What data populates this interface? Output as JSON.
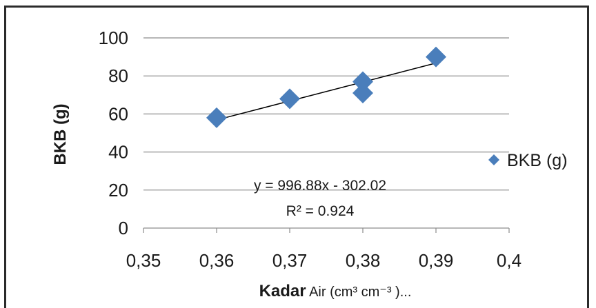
{
  "chart_data": {
    "type": "scatter",
    "x_ticks": [
      "0,35",
      "0,36",
      "0,37",
      "0,38",
      "0,39",
      "0,4"
    ],
    "y_ticks": [
      "0",
      "20",
      "40",
      "60",
      "80",
      "100"
    ],
    "xlim": [
      0.35,
      0.4
    ],
    "ylim": [
      0,
      100
    ],
    "ylabel": "BKB (g)",
    "xlabel_bold": "Kadar",
    "xlabel_rest": " Air (cm³ cm⁻³ )...",
    "grid": "horizontal",
    "legend_position": "right",
    "series": [
      {
        "name": "BKB (g)",
        "color": "#4a7ebb",
        "marker": "diamond",
        "points": [
          {
            "x": 0.36,
            "y": 58
          },
          {
            "x": 0.37,
            "y": 68
          },
          {
            "x": 0.38,
            "y": 77
          },
          {
            "x": 0.38,
            "y": 71
          },
          {
            "x": 0.39,
            "y": 90
          }
        ]
      }
    ],
    "trendline": {
      "slope": 996.88,
      "intercept": -302.02,
      "x_from": 0.36,
      "x_to": 0.39,
      "color": "#000000"
    },
    "annotations": {
      "equation": "y = 996.88x  - 302.02",
      "r_squared": "R² = 0.924"
    }
  }
}
